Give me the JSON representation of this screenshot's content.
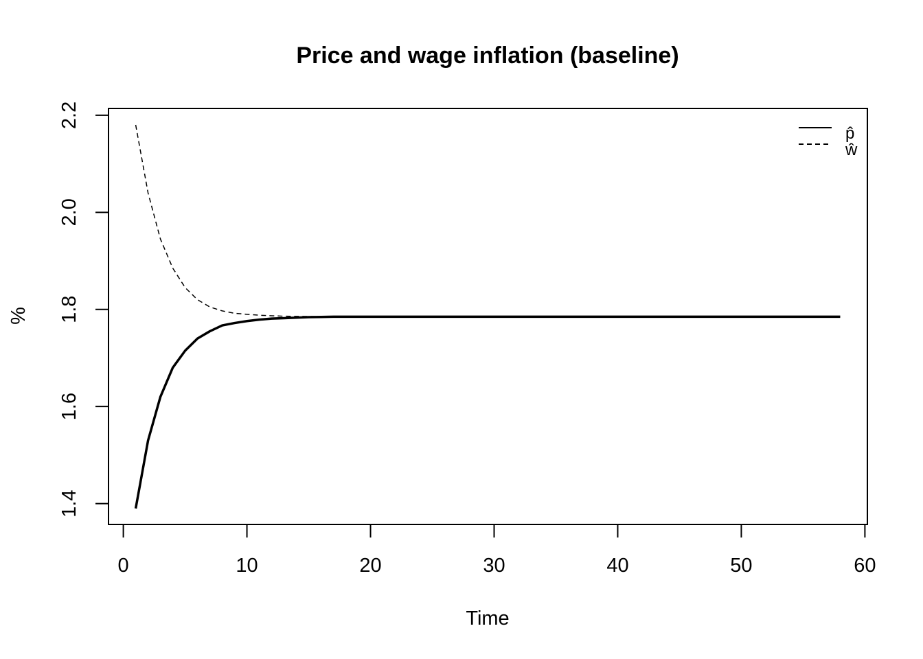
{
  "chart_data": {
    "type": "line",
    "title": "Price and wage inflation (baseline)",
    "xlabel": "Time",
    "ylabel": "%",
    "xlim": [
      -1.2,
      60.2
    ],
    "ylim": [
      1.357,
      2.214
    ],
    "xticks": [
      0,
      10,
      20,
      30,
      40,
      50,
      60
    ],
    "yticks": [
      1.4,
      1.6,
      1.8,
      2.0,
      2.2
    ],
    "grid": false,
    "legend_position": "top-right",
    "x": [
      1,
      2,
      3,
      4,
      5,
      6,
      7,
      8,
      9,
      10,
      11,
      12,
      13,
      14,
      15,
      16,
      17,
      18,
      19,
      20,
      21,
      22,
      23,
      24,
      25,
      26,
      27,
      28,
      29,
      30,
      31,
      32,
      33,
      34,
      35,
      36,
      37,
      38,
      39,
      40,
      41,
      42,
      43,
      44,
      45,
      46,
      47,
      48,
      49,
      50,
      51,
      52,
      53,
      54,
      55,
      56,
      57,
      58
    ],
    "series": [
      {
        "name": "p̂",
        "line_style": "solid",
        "color": "#000000",
        "values": [
          1.39,
          1.53,
          1.62,
          1.68,
          1.715,
          1.74,
          1.755,
          1.767,
          1.772,
          1.776,
          1.779,
          1.781,
          1.782,
          1.783,
          1.784,
          1.7845,
          1.785,
          1.785,
          1.785,
          1.785,
          1.785,
          1.785,
          1.785,
          1.785,
          1.785,
          1.785,
          1.785,
          1.785,
          1.785,
          1.785,
          1.785,
          1.785,
          1.785,
          1.785,
          1.785,
          1.785,
          1.785,
          1.785,
          1.785,
          1.785,
          1.785,
          1.785,
          1.785,
          1.785,
          1.785,
          1.785,
          1.785,
          1.785,
          1.785,
          1.785,
          1.785,
          1.785,
          1.785,
          1.785,
          1.785,
          1.785,
          1.785,
          1.785
        ]
      },
      {
        "name": "ŵ",
        "line_style": "dashed",
        "color": "#000000",
        "values": [
          2.18,
          2.04,
          1.945,
          1.885,
          1.845,
          1.82,
          1.805,
          1.797,
          1.792,
          1.79,
          1.788,
          1.787,
          1.786,
          1.7857,
          1.7855,
          1.7852,
          1.785,
          1.785,
          1.785,
          1.785,
          1.785,
          1.785,
          1.785,
          1.785,
          1.785,
          1.785,
          1.785,
          1.785,
          1.785,
          1.785,
          1.785,
          1.785,
          1.785,
          1.785,
          1.785,
          1.785,
          1.785,
          1.785,
          1.785,
          1.785,
          1.785,
          1.785,
          1.785,
          1.785,
          1.785,
          1.785,
          1.785,
          1.785,
          1.785,
          1.785,
          1.785,
          1.785,
          1.785,
          1.785,
          1.785,
          1.785,
          1.785,
          1.785
        ]
      }
    ]
  }
}
